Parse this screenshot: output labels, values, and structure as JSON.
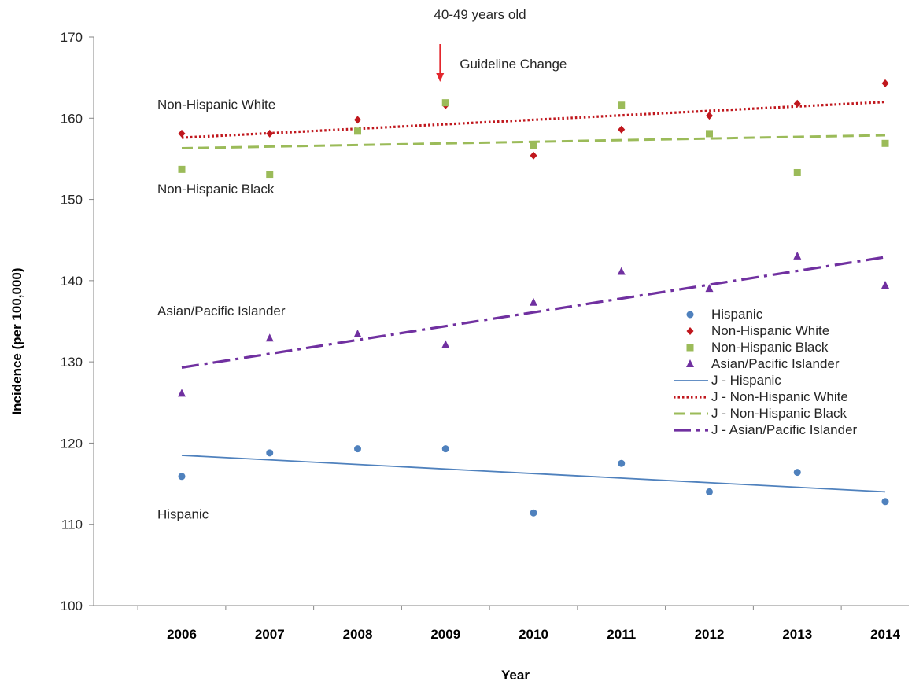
{
  "chart_data": {
    "type": "scatter",
    "title": "40-49 years old",
    "xlabel": "Year",
    "ylabel": "Incidence (per 100,000)",
    "x": [
      2006,
      2007,
      2008,
      2009,
      2010,
      2011,
      2012,
      2013,
      2014
    ],
    "ylim": [
      100,
      170
    ],
    "yticks": [
      100,
      110,
      120,
      130,
      140,
      150,
      160,
      170
    ],
    "grid": false,
    "legend_position": "right",
    "series": [
      {
        "name": "Hispanic",
        "marker": "circle",
        "color": "#4f81bd",
        "values": [
          115.9,
          118.8,
          119.3,
          119.3,
          111.4,
          117.5,
          114.0,
          116.4,
          112.8
        ]
      },
      {
        "name": "Non-Hispanic White",
        "marker": "diamond",
        "color": "#c0171d",
        "values": [
          158.1,
          158.1,
          159.8,
          161.6,
          155.4,
          158.6,
          160.3,
          161.8,
          164.3
        ]
      },
      {
        "name": "Non-Hispanic Black",
        "marker": "square",
        "color": "#9bbb59",
        "values": [
          153.7,
          153.1,
          158.4,
          161.9,
          156.6,
          161.6,
          158.1,
          153.3,
          156.9
        ]
      },
      {
        "name": "Asian/Pacific Islander",
        "marker": "triangle",
        "color": "#7030a0",
        "values": [
          126.1,
          132.9,
          133.4,
          132.1,
          137.3,
          141.1,
          139.0,
          143.0,
          139.4
        ]
      }
    ],
    "trendlines": [
      {
        "name": "J - Hispanic",
        "style": "solid",
        "color": "#4f81bd",
        "start": 118.5,
        "end": 114.0
      },
      {
        "name": "J - Non-Hispanic White",
        "style": "dotted",
        "color": "#c0171d",
        "start": 157.6,
        "end": 162.0
      },
      {
        "name": "J - Non-Hispanic Black",
        "style": "dashed",
        "color": "#9bbb59",
        "start": 156.3,
        "end": 157.9
      },
      {
        "name": "J - Asian/Pacific Islander",
        "style": "dashdot",
        "color": "#7030a0",
        "start": 129.3,
        "end": 142.9
      }
    ],
    "annotations": [
      {
        "text": "Guideline Change",
        "x": 2009,
        "arrow_color": "#e3262d"
      },
      {
        "text": "Non-Hispanic White",
        "x": 2006,
        "y": 161.7
      },
      {
        "text": "Non-Hispanic Black",
        "x": 2006,
        "y": 151.3
      },
      {
        "text": "Asian/Pacific Islander",
        "x": 2006,
        "y": 136.3
      },
      {
        "text": "Hispanic",
        "x": 2006,
        "y": 111.3
      }
    ]
  }
}
